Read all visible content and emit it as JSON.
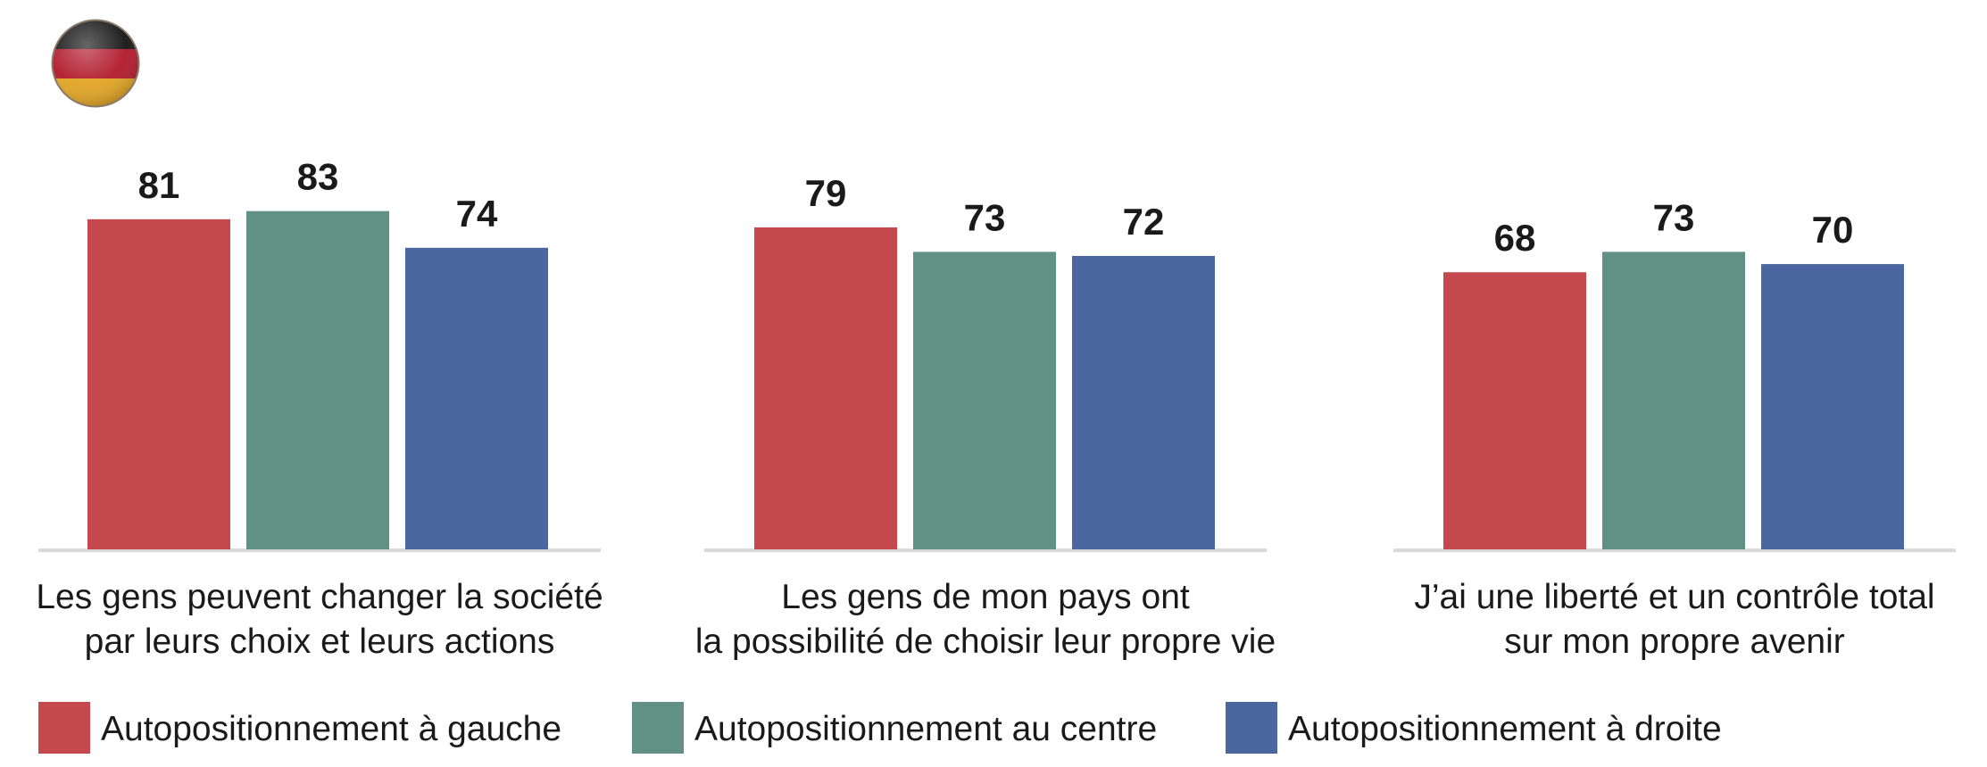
{
  "colors": {
    "gauche": "#c5484d",
    "centre": "#619184",
    "droite": "#4b67a1",
    "baseline": "#d9d9d9"
  },
  "flag_icon": "germany-flag-icon",
  "chart_data": {
    "type": "bar",
    "categories": [
      [
        "Les gens peuvent changer la société",
        "par leurs choix et leurs actions"
      ],
      [
        "Les gens de mon pays ont",
        "la possibilité de choisir leur propre vie"
      ],
      [
        "J’ai une liberté et un contrôle total",
        "sur mon propre avenir"
      ]
    ],
    "series": [
      {
        "name": "Autopositionnement à gauche",
        "values": [
          81,
          79,
          68
        ]
      },
      {
        "name": "Autopositionnement au centre",
        "values": [
          83,
          73,
          73
        ]
      },
      {
        "name": "Autopositionnement à droite",
        "values": [
          74,
          72,
          70
        ]
      }
    ],
    "ylim": [
      0,
      100
    ],
    "grid": false,
    "legend_position": "bottom-left",
    "data_labels": true
  }
}
